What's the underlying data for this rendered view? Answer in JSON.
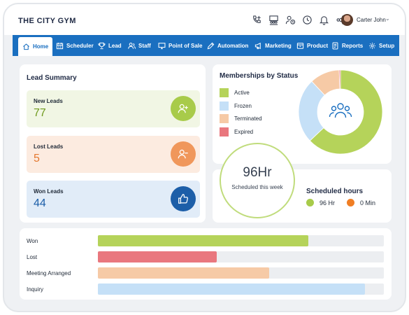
{
  "app": {
    "name": "THE CITY GYM"
  },
  "user": {
    "name": "Carter John"
  },
  "top_icons": [
    "phone-add-icon",
    "meeting-icon",
    "user-clock-icon",
    "clock-icon",
    "bell-icon",
    "share-icon"
  ],
  "nav": [
    {
      "label": "Home",
      "icon": "home-icon",
      "active": true
    },
    {
      "label": "Scheduler",
      "icon": "calendar-icon"
    },
    {
      "label": "Lead",
      "icon": "trophy-icon"
    },
    {
      "label": "Staff",
      "icon": "staff-icon"
    },
    {
      "label": "Point of Sale",
      "icon": "monitor-icon"
    },
    {
      "label": "Automation",
      "icon": "pen-icon"
    },
    {
      "label": "Marketing",
      "icon": "megaphone-icon"
    },
    {
      "label": "Product",
      "icon": "box-icon"
    },
    {
      "label": "Reports",
      "icon": "reports-icon"
    },
    {
      "label": "Setup",
      "icon": "gear-icon"
    }
  ],
  "lead_summary": {
    "title": "Lead Summary",
    "tiles": [
      {
        "label": "New Leads",
        "value": "77",
        "icon": "user-plus-icon",
        "bg": "#f1f6e4",
        "accent": "#a8cb4a",
        "value_color": "#6f9a1e"
      },
      {
        "label": "Lost Leads",
        "value": "5",
        "icon": "user-minus-icon",
        "bg": "#fcebe0",
        "accent": "#f0975b",
        "value_color": "#e4782f"
      },
      {
        "label": "Won Leads",
        "value": "44",
        "icon": "thumbs-up-icon",
        "bg": "#e1ecf8",
        "accent": "#1c5ea8",
        "value_color": "#1c5ea8"
      }
    ]
  },
  "memberships": {
    "title": "Memberships by Status",
    "legend": [
      {
        "label": "Active",
        "color": "#b5d35a"
      },
      {
        "label": "Frozen",
        "color": "#c5e0f7"
      },
      {
        "label": "Terminated",
        "color": "#f6caa6"
      },
      {
        "label": "Expired",
        "color": "#e9777e"
      }
    ],
    "slices": [
      {
        "label": "Active",
        "value": 63,
        "color": "#b5d35a"
      },
      {
        "label": "Frozen",
        "value": 25,
        "color": "#c5e0f7"
      },
      {
        "label": "Terminated",
        "value": 11.5,
        "color": "#f6caa6"
      },
      {
        "label": "Expired",
        "value": 0.5,
        "color": "#e9777e"
      }
    ],
    "center_icon": "group-icon"
  },
  "scheduled": {
    "value": "96Hr",
    "caption": "Scheduled this week",
    "title": "Scheduled hours",
    "items": [
      {
        "label": "96 Hr",
        "color": "#a8cb4a"
      },
      {
        "label": "0 Min",
        "color": "#f07e24"
      }
    ]
  },
  "pipeline": {
    "bars": [
      {
        "label": "Won",
        "value": 0.735,
        "color": "#b5d35a"
      },
      {
        "label": "Lost",
        "value": 0.415,
        "color": "#e9777e"
      },
      {
        "label": "Meeting Arranged",
        "value": 0.6,
        "color": "#f6caa6"
      },
      {
        "label": "Inquiry",
        "value": 0.935,
        "color": "#c5e0f7"
      }
    ]
  }
}
